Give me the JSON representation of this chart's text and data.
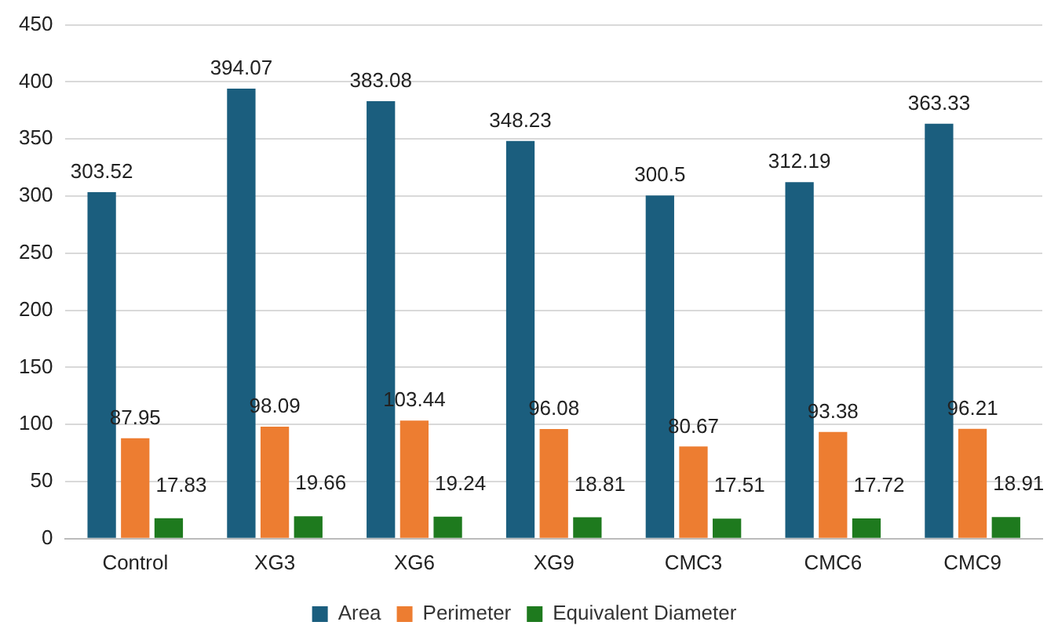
{
  "chart_data": {
    "type": "bar",
    "categories": [
      "Control",
      "XG3",
      "XG6",
      "XG9",
      "CMC3",
      "CMC6",
      "CMC9"
    ],
    "series": [
      {
        "name": "Area",
        "color": "#1b5e7e",
        "values": [
          303.52,
          394.07,
          383.08,
          348.23,
          300.5,
          312.19,
          363.33
        ]
      },
      {
        "name": "Perimeter",
        "color": "#ed7d31",
        "values": [
          87.95,
          98.09,
          103.44,
          96.08,
          80.67,
          93.38,
          96.21
        ]
      },
      {
        "name": "Equivalent Diameter",
        "color": "#1e7a1e",
        "values": [
          17.83,
          19.66,
          19.24,
          18.81,
          17.51,
          17.72,
          18.91
        ]
      }
    ],
    "ylim": [
      0,
      450
    ],
    "yticks": [
      0,
      50,
      100,
      150,
      200,
      250,
      300,
      350,
      400,
      450
    ],
    "grid": "y",
    "legend": "bottom",
    "data_labels": true
  }
}
